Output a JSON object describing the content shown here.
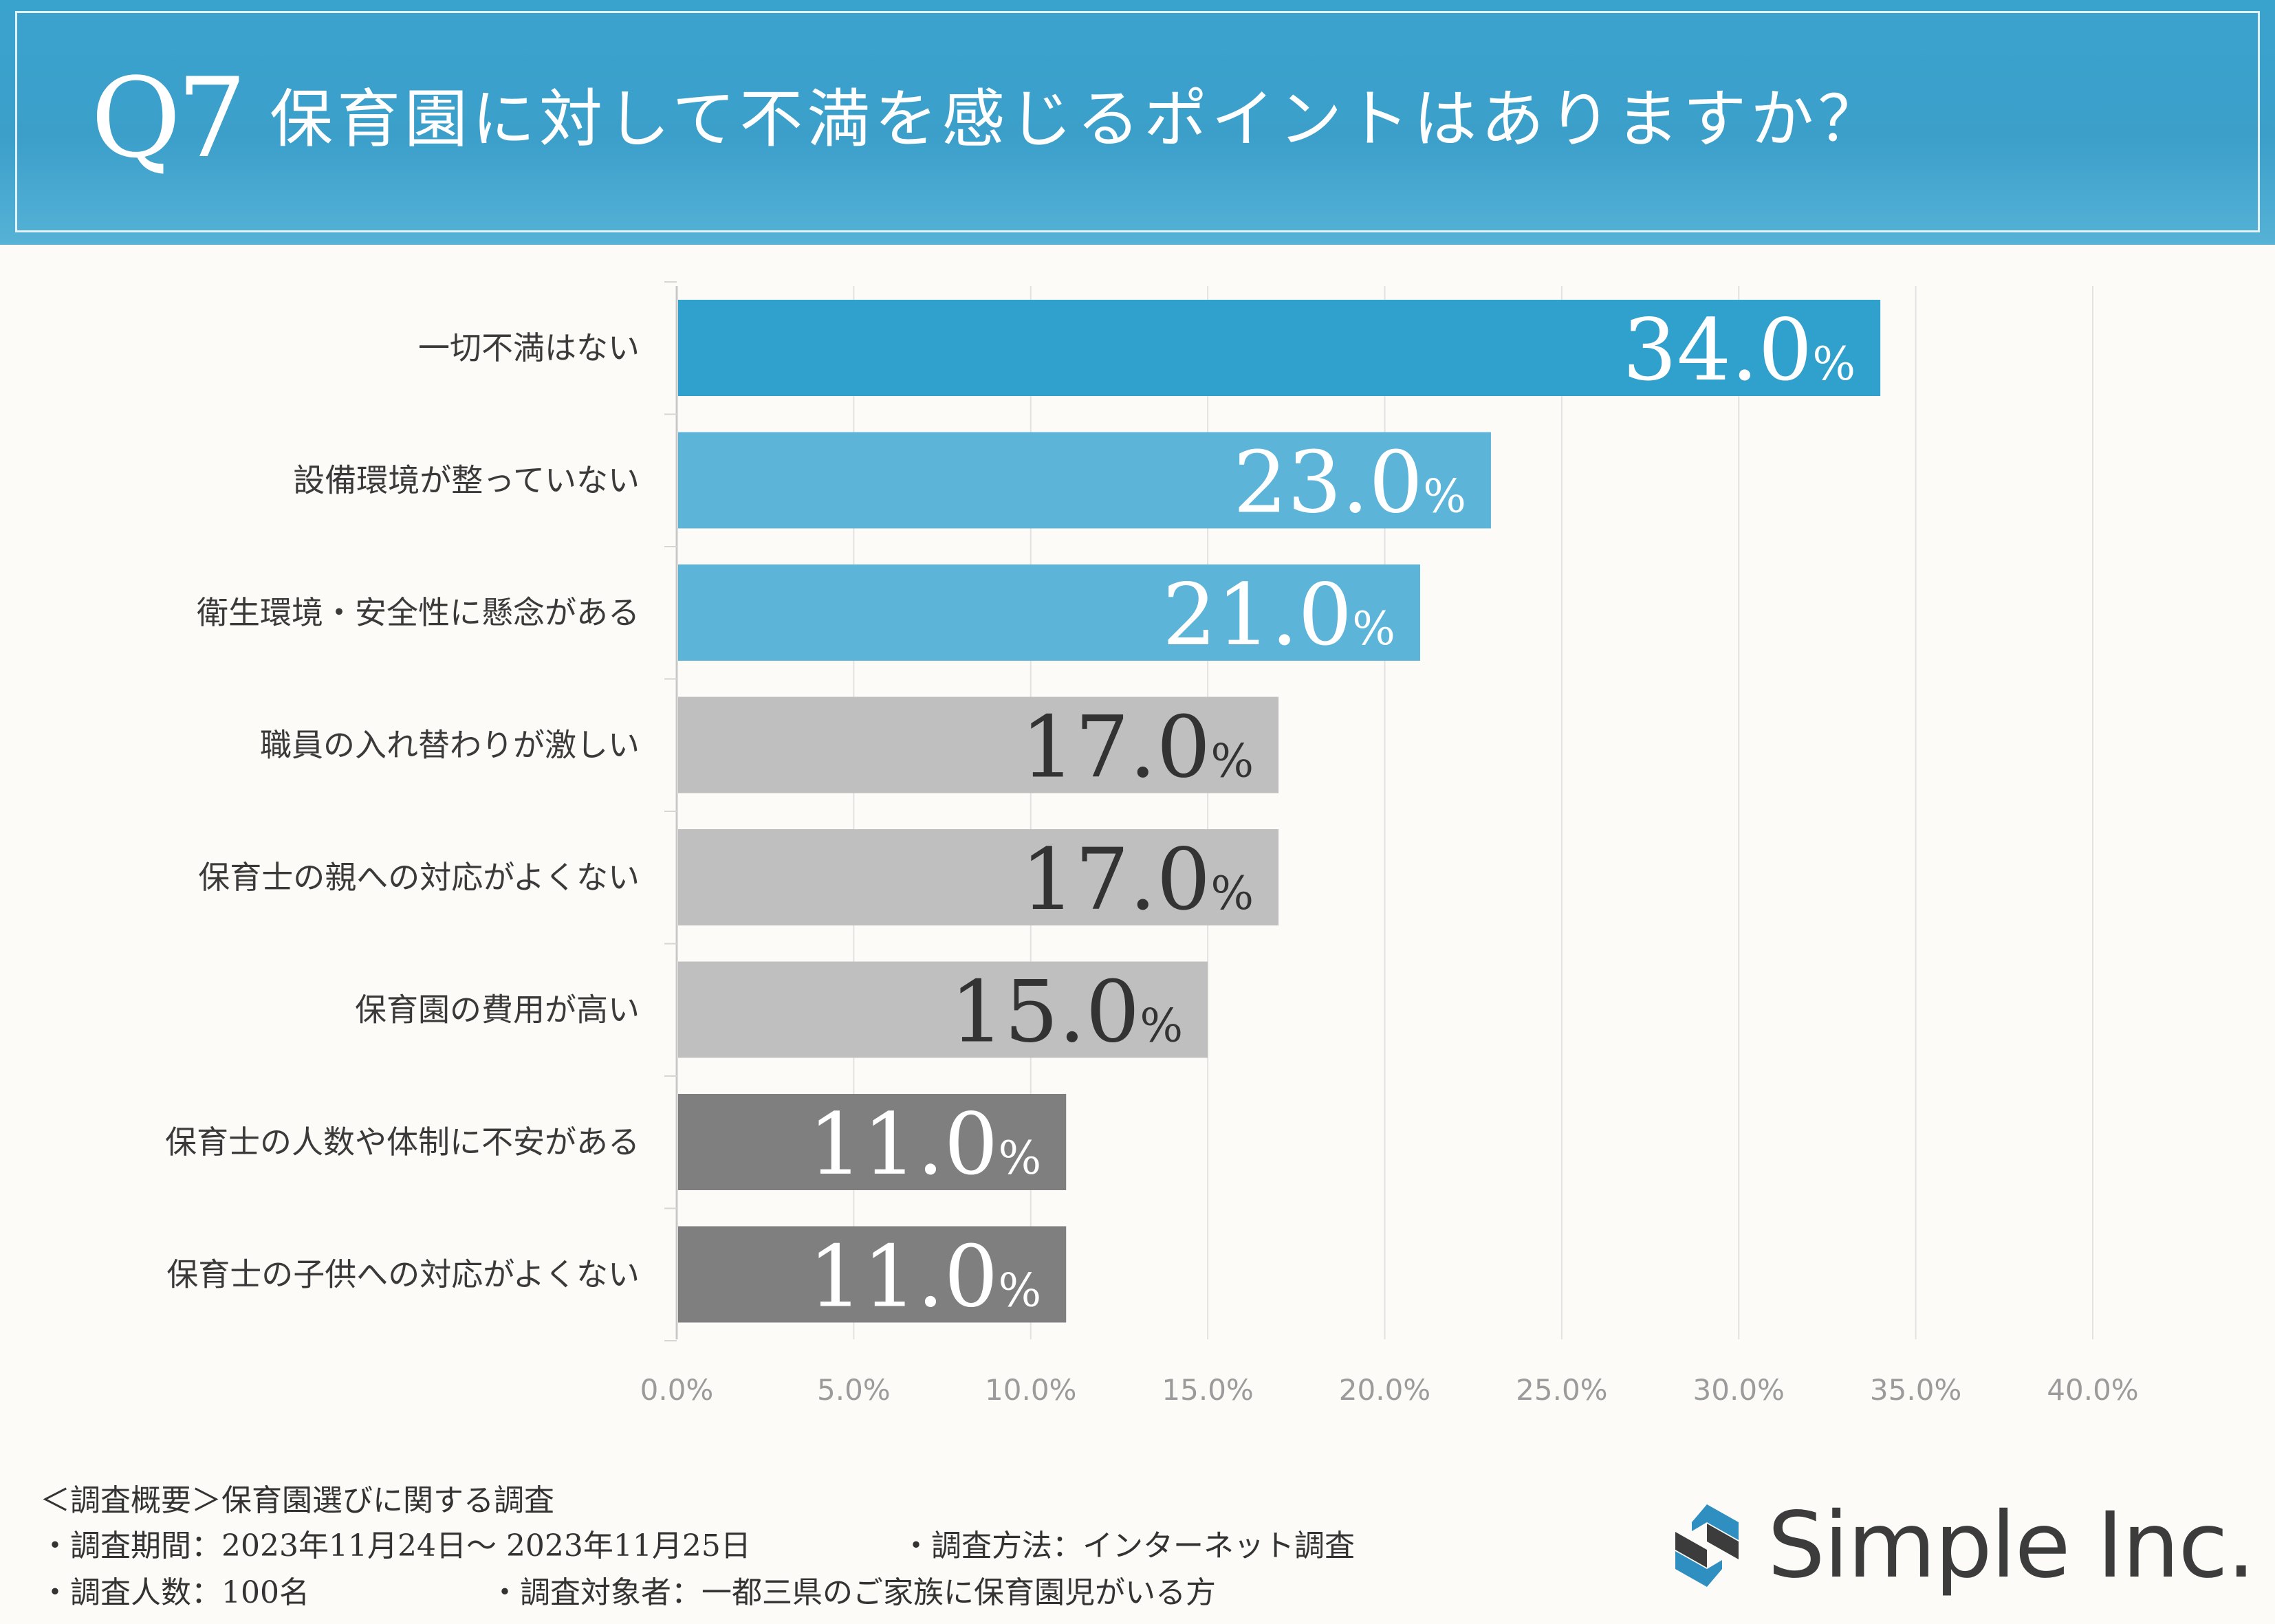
{
  "header": {
    "q_number": "Q7",
    "question": "保育園に対して不満を感じるポイントはありますか？"
  },
  "chart_data": {
    "type": "bar",
    "orientation": "horizontal",
    "title": "保育園に対して不満を感じるポイントはありますか？",
    "categories": [
      "一切不満はない",
      "設備環境が整っていない",
      "衛生環境・安全性に懸念がある",
      "職員の入れ替わりが激しい",
      "保育士の親への対応がよくない",
      "保育園の費用が高い",
      "保育士の人数や体制に不安がある",
      "保育士の子供への対応がよくない"
    ],
    "values": [
      34.0,
      23.0,
      21.0,
      17.0,
      17.0,
      15.0,
      11.0,
      11.0
    ],
    "value_labels": [
      "34.0",
      "23.0",
      "21.0",
      "17.0",
      "17.0",
      "15.0",
      "11.0",
      "11.0"
    ],
    "value_suffix": "%",
    "bar_colors": [
      "#30a0cd",
      "#5cb4d9",
      "#5cb4d9",
      "#bfbfbf",
      "#bfbfbf",
      "#bfbfbf",
      "#7f7f7f",
      "#7f7f7f"
    ],
    "label_colors": [
      "#ffffff",
      "#ffffff",
      "#ffffff",
      "#333333",
      "#333333",
      "#333333",
      "#ffffff",
      "#ffffff"
    ],
    "xlim": [
      0,
      40
    ],
    "xticks": [
      0,
      5,
      10,
      15,
      20,
      25,
      30,
      35,
      40
    ],
    "xtick_labels": [
      "0.0%",
      "5.0%",
      "10.0%",
      "15.0%",
      "20.0%",
      "25.0%",
      "30.0%",
      "35.0%",
      "40.0%"
    ],
    "grid": true,
    "xlabel": "",
    "ylabel": ""
  },
  "footer": {
    "summary": "＜調査概要＞保育園選びに関する調査",
    "period": "・調査期間：2023年11月24日～ 2023年11月25日",
    "method": "・調査方法：インターネット調査",
    "count": "・調査人数：100名",
    "target": "・調査対象者：一都三県のご家族に保育園児がいる方"
  },
  "brand": {
    "name": "Simple Inc.",
    "colors": {
      "primary": "#2f8fc0",
      "dark": "#3c3c3c"
    }
  }
}
